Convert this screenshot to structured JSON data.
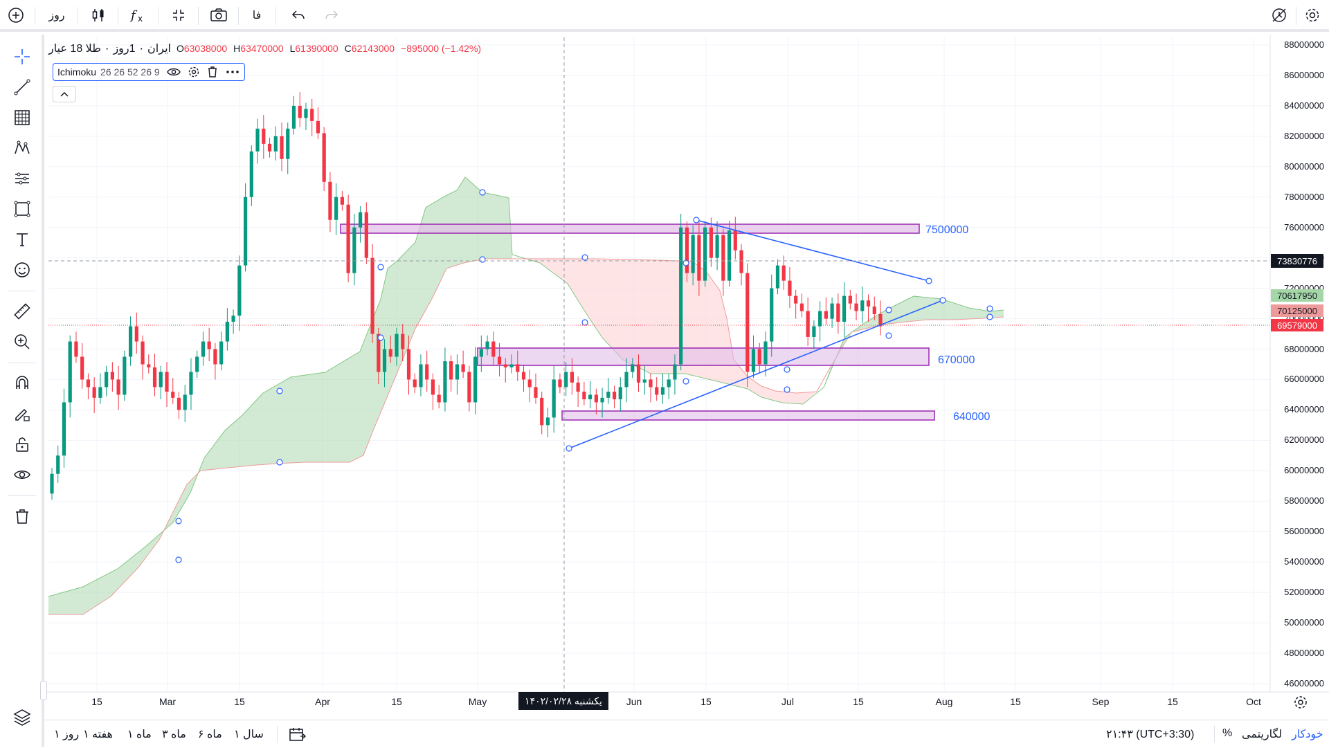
{
  "topbar": {
    "add_symbol_icon": "plus-circle-icon",
    "interval": "روز",
    "chart_type_icon": "candles-icon",
    "indicators_icon": "fx-icon",
    "fullscreen_icon": "fullscreen-icon",
    "screenshot_icon": "camera-icon",
    "language": "فا",
    "undo_icon": "undo-icon",
    "redo_icon": "redo-icon",
    "alert_icon": "alert-clock-icon",
    "settings_icon": "gear-icon"
  },
  "legend": {
    "symbol": "طلا 18 عیار",
    "separator1": "۰",
    "interval": "1روز",
    "separator2": "۰",
    "exchange": "ایران",
    "open_label": "O",
    "open": "63038000",
    "high_label": "H",
    "high": "63470000",
    "low_label": "L",
    "low": "61390000",
    "close_label": "C",
    "close": "62143000",
    "change": "−895000 (−1.42%)"
  },
  "indicator": {
    "name": "Ichimoku",
    "params": "26 26 52 26 9"
  },
  "price_axis": {
    "labels": [
      "88000000",
      "86000000",
      "84000000",
      "82000000",
      "80000000",
      "78000000",
      "76000000",
      "74000000",
      "72000000",
      "70000000",
      "68000000",
      "66000000",
      "64000000",
      "62000000",
      "60000000",
      "58000000",
      "56000000",
      "54000000",
      "52000000",
      "50000000",
      "48000000",
      "46000000"
    ],
    "crosshair_price": "73830776",
    "tag_green": "70617950",
    "tag_red1": "70125000",
    "tag_red2": "69579000"
  },
  "time_axis": {
    "labels": [
      "15",
      "Mar",
      "15",
      "Apr",
      "15",
      "May",
      "Jun",
      "15",
      "Jul",
      "15",
      "Aug",
      "15",
      "Sep",
      "15",
      "Oct"
    ],
    "crosshair_date": "یکشنبه ۱۴۰۲/۰۲/۲۸"
  },
  "zones": {
    "zone1_label": "7500000",
    "zone2_label": "670000",
    "zone3_label": "640000"
  },
  "bottombar": {
    "ranges": [
      "سال ۱",
      "ماه ۶",
      "ماه ۳",
      "ماه ۱",
      "هفته ۱",
      "روز ۱"
    ],
    "time": "۲۱:۴۳ (UTC+3:30)",
    "percent": "%",
    "log": "لگاریتمی",
    "auto": "خودکار"
  },
  "chart_data": {
    "type": "candlestick",
    "title": "طلا 18 عیار",
    "ylim": [
      46000000,
      88000000
    ],
    "price_scale": "right",
    "series": [
      {
        "name": "price",
        "approx_closes": [
          59000000,
          61000000,
          68000000,
          67000000,
          65000000,
          66000000,
          65000000,
          69000000,
          68000000,
          66000000,
          65000000,
          64000000,
          67000000,
          69000000,
          72000000,
          82000000,
          81000000,
          82500000,
          83500000,
          83000000,
          80000000,
          77000000,
          73000000,
          76000000,
          71000000,
          67000000,
          66000000,
          64500000,
          68000000,
          66000000,
          67000000,
          68500000,
          66500000,
          65000000,
          64000000,
          62000000,
          65000000,
          66000000,
          65000000,
          64500000,
          65500000,
          66000000,
          65000000,
          76000000,
          74500000,
          76000000,
          66000000,
          73000000,
          70000000,
          69000000,
          70000000,
          71000000,
          70500000,
          62143000
        ]
      }
    ],
    "levels": [
      75000000,
      67000000,
      64000000
    ]
  }
}
